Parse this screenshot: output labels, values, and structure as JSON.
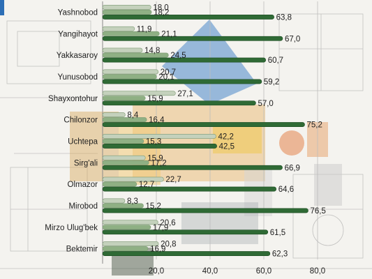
{
  "chart_data": {
    "type": "bar",
    "orientation": "horizontal",
    "categories": [
      "Yashnobod",
      "Yangihayot",
      "Yakkasaroy",
      "Yunusobod",
      "Shayxontohur",
      "Chilonzor",
      "Uchtepa",
      "Sirg'ali",
      "Olmazor",
      "Mirobod",
      "Mirzo Ulug'bek",
      "Bektemir"
    ],
    "series": [
      {
        "color": "#c4d1bc",
        "values": [
          18.0,
          11.9,
          14.8,
          20.7,
          27.1,
          8.4,
          42.2,
          15.9,
          22.7,
          8.3,
          20.6,
          20.8
        ]
      },
      {
        "color": "#8fb084",
        "values": [
          18.2,
          21.1,
          24.5,
          20.1,
          15.9,
          16.4,
          15.3,
          17.2,
          12.7,
          15.2,
          17.9,
          16.9
        ]
      },
      {
        "color": "#2f6a35",
        "values": [
          63.8,
          67.0,
          60.7,
          59.2,
          57.0,
          75.2,
          42.5,
          66.9,
          64.6,
          76.5,
          61.5,
          62.3
        ]
      }
    ],
    "value_labels": [
      [
        "18,0",
        "11,9",
        "14,8",
        "20,7",
        "27,1",
        "8,4",
        "42,2",
        "15,9",
        "22,7",
        "8,3",
        "20,6",
        "20,8"
      ],
      [
        "18,2",
        "21,1",
        "24,5",
        "20,1",
        "15,9",
        "16,4",
        "15,3",
        "17,2",
        "12,7",
        "15,2",
        "17,9",
        "16,9"
      ],
      [
        "63,8",
        "67,0",
        "60,7",
        "59,2",
        "57,0",
        "75,2",
        "42,5",
        "66,9",
        "64,6",
        "76,5",
        "61,5",
        "62,3"
      ]
    ],
    "xlim": [
      0,
      80
    ],
    "x_ticks": [
      20,
      40,
      60,
      80
    ],
    "x_tick_labels": [
      "20,0",
      "40,0",
      "60,0",
      "80,0"
    ],
    "grid": true,
    "legend": "none"
  }
}
